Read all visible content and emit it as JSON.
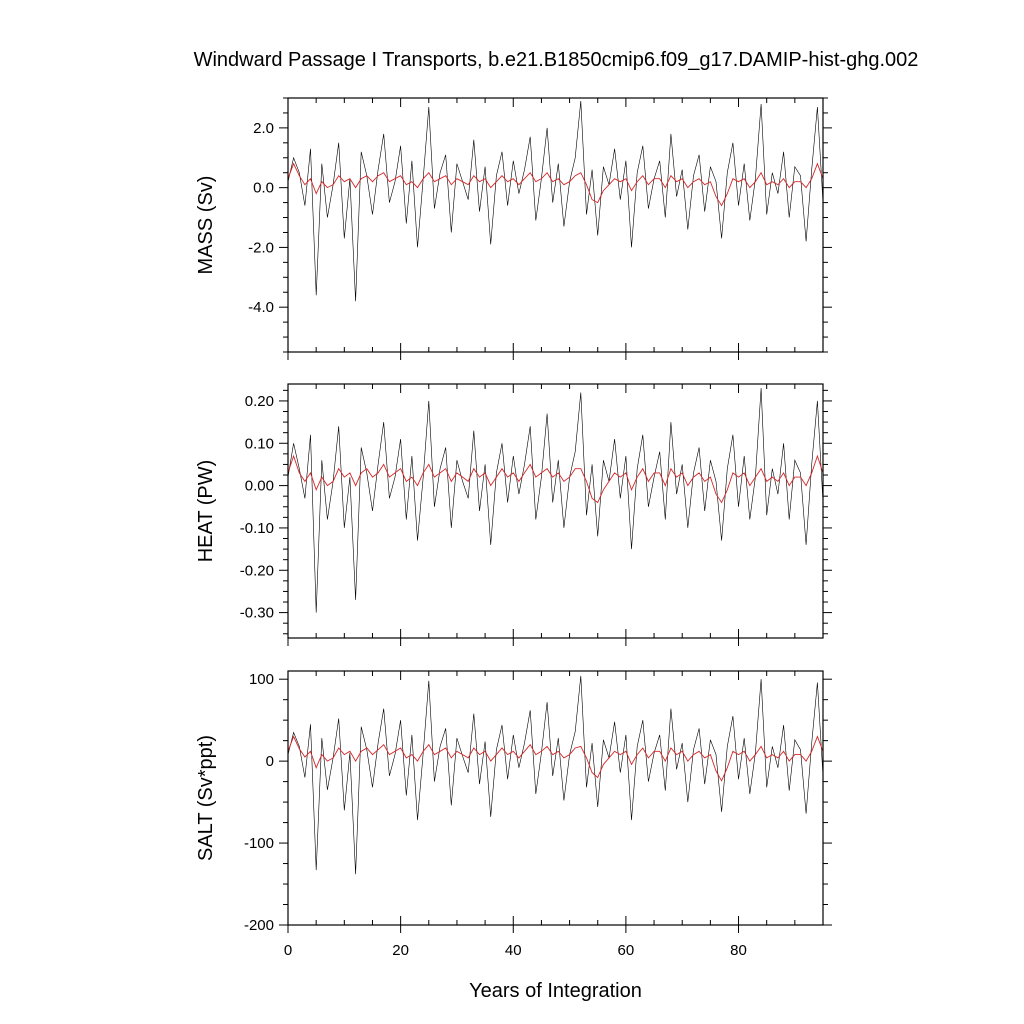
{
  "figure_title": "Windward Passage I Transports, b.e21.B1850cmip6.f09_g17.DAMIP-hist-ghg.002",
  "colors": {
    "raw_series": "#000000",
    "smoothed_series": "#d62728"
  },
  "chart_data": [
    {
      "type": "line",
      "title": "Windward Passage I Transports, b.e21.B1850cmip6.f09_g17.DAMIP-hist-ghg.002",
      "xlabel": "",
      "ylabel": "MASS (Sv)",
      "xlim": [
        0,
        95
      ],
      "ylim": [
        -5.5,
        3.0
      ],
      "x_ticks": [
        0,
        20,
        40,
        60,
        80
      ],
      "y_ticks": [
        2.0,
        0.0,
        -2.0,
        -4.0
      ],
      "y_tick_labels": [
        "2.0",
        "0.0",
        "-2.0",
        "-4.0"
      ],
      "series": [
        {
          "kind": "raw-monthly",
          "x_start": 0,
          "x_step": 1,
          "values": [
            0.2,
            1.0,
            0.5,
            -0.6,
            1.3,
            -3.6,
            0.8,
            -1.0,
            0.1,
            1.5,
            -1.7,
            0.3,
            -3.8,
            1.2,
            0.4,
            -0.9,
            0.6,
            1.8,
            -0.5,
            0.2,
            1.4,
            -1.2,
            0.9,
            -2.0,
            0.3,
            2.7,
            -0.7,
            0.5,
            1.1,
            -1.5,
            0.8,
            0.2,
            -0.4,
            1.6,
            -0.8,
            0.7,
            -1.9,
            0.4,
            1.2,
            -0.6,
            0.9,
            -0.2,
            0.6,
            1.7,
            -1.1,
            0.3,
            2.0,
            -0.5,
            0.8,
            -1.3,
            0.2,
            1.0,
            2.9,
            -0.9,
            0.6,
            -1.6,
            0.7,
            0.1,
            1.3,
            -0.4,
            0.9,
            -2.0,
            0.5,
            1.4,
            -0.7,
            0.3,
            0.9,
            -1.0,
            1.8,
            -0.3,
            0.6,
            -1.4,
            0.4,
            1.1,
            -0.8,
            0.7,
            0.2,
            -1.7,
            0.5,
            1.5,
            -0.6,
            0.8,
            -1.1,
            0.3,
            2.8,
            -0.9,
            0.5,
            -0.2,
            1.2,
            -1.0,
            0.7,
            0.4,
            -1.8,
            0.6,
            2.7,
            -0.5
          ]
        },
        {
          "kind": "smoothed",
          "x_start": 0,
          "x_step": 1,
          "values": [
            0.3,
            0.8,
            0.4,
            0.1,
            0.3,
            -0.2,
            0.2,
            0.0,
            0.1,
            0.4,
            0.2,
            0.3,
            0.0,
            0.3,
            0.4,
            0.2,
            0.4,
            0.5,
            0.2,
            0.3,
            0.4,
            0.1,
            0.2,
            0.0,
            0.3,
            0.5,
            0.2,
            0.3,
            0.4,
            0.1,
            0.3,
            0.2,
            0.1,
            0.4,
            0.2,
            0.3,
            0.0,
            0.2,
            0.4,
            0.2,
            0.3,
            0.1,
            0.3,
            0.5,
            0.2,
            0.3,
            0.5,
            0.2,
            0.3,
            0.1,
            0.2,
            0.4,
            0.5,
            0.1,
            -0.4,
            -0.5,
            -0.1,
            0.1,
            0.3,
            0.2,
            0.3,
            -0.1,
            0.2,
            0.4,
            0.1,
            0.3,
            0.3,
            0.0,
            0.4,
            0.2,
            0.3,
            0.0,
            0.2,
            0.3,
            0.1,
            0.2,
            -0.3,
            -0.6,
            -0.2,
            0.3,
            0.2,
            0.3,
            0.0,
            0.2,
            0.5,
            0.1,
            0.2,
            0.1,
            0.3,
            0.0,
            0.2,
            0.2,
            0.0,
            0.3,
            0.8,
            0.3
          ]
        }
      ]
    },
    {
      "type": "line",
      "xlabel": "",
      "ylabel": "HEAT (PW)",
      "xlim": [
        0,
        95
      ],
      "ylim": [
        -0.36,
        0.24
      ],
      "x_ticks": [
        0,
        20,
        40,
        60,
        80
      ],
      "y_ticks": [
        0.2,
        0.1,
        0.0,
        -0.1,
        -0.2,
        -0.3
      ],
      "y_tick_labels": [
        "0.20",
        "0.10",
        "0.00",
        "-0.10",
        "-0.20",
        "-0.30"
      ],
      "series": [
        {
          "kind": "raw-monthly",
          "x_start": 0,
          "x_step": 1,
          "values": [
            0.02,
            0.1,
            0.04,
            -0.03,
            0.12,
            -0.3,
            0.06,
            -0.08,
            0.01,
            0.14,
            -0.1,
            0.02,
            -0.27,
            0.09,
            0.03,
            -0.06,
            0.05,
            0.15,
            -0.03,
            0.02,
            0.11,
            -0.08,
            0.07,
            -0.13,
            0.02,
            0.2,
            -0.05,
            0.04,
            0.09,
            -0.1,
            0.06,
            0.01,
            -0.03,
            0.13,
            -0.06,
            0.05,
            -0.14,
            0.03,
            0.1,
            -0.04,
            0.07,
            -0.02,
            0.05,
            0.14,
            -0.08,
            0.02,
            0.17,
            -0.04,
            0.06,
            -0.1,
            0.02,
            0.08,
            0.22,
            -0.07,
            0.05,
            -0.12,
            0.06,
            0.01,
            0.11,
            -0.03,
            0.07,
            -0.15,
            0.04,
            0.12,
            -0.05,
            0.02,
            0.08,
            -0.08,
            0.15,
            -0.02,
            0.05,
            -0.1,
            0.03,
            0.09,
            -0.06,
            0.06,
            0.01,
            -0.13,
            0.04,
            0.12,
            -0.05,
            0.07,
            -0.08,
            0.02,
            0.23,
            -0.07,
            0.04,
            -0.02,
            0.1,
            -0.08,
            0.06,
            0.03,
            -0.14,
            0.05,
            0.2,
            -0.04
          ]
        },
        {
          "kind": "smoothed",
          "x_start": 0,
          "x_step": 1,
          "values": [
            0.03,
            0.07,
            0.03,
            0.01,
            0.03,
            -0.01,
            0.02,
            0.0,
            0.01,
            0.04,
            0.02,
            0.03,
            0.0,
            0.03,
            0.04,
            0.02,
            0.03,
            0.05,
            0.02,
            0.03,
            0.04,
            0.01,
            0.02,
            0.0,
            0.03,
            0.05,
            0.02,
            0.03,
            0.04,
            0.01,
            0.03,
            0.02,
            0.01,
            0.04,
            0.02,
            0.03,
            0.0,
            0.02,
            0.04,
            0.02,
            0.03,
            0.01,
            0.03,
            0.05,
            0.02,
            0.03,
            0.04,
            0.02,
            0.03,
            0.01,
            0.02,
            0.04,
            0.04,
            0.01,
            -0.03,
            -0.04,
            -0.01,
            0.01,
            0.03,
            0.02,
            0.03,
            -0.01,
            0.02,
            0.04,
            0.01,
            0.03,
            0.03,
            0.0,
            0.04,
            0.02,
            0.03,
            0.0,
            0.02,
            0.03,
            0.01,
            0.02,
            -0.02,
            -0.04,
            -0.01,
            0.03,
            0.02,
            0.03,
            0.0,
            0.02,
            0.04,
            0.01,
            0.02,
            0.01,
            0.03,
            0.0,
            0.02,
            0.02,
            0.0,
            0.03,
            0.07,
            0.03
          ]
        }
      ]
    },
    {
      "type": "line",
      "xlabel": "Years of Integration",
      "ylabel": "SALT (Sv*ppt)",
      "xlim": [
        0,
        95
      ],
      "ylim": [
        -200,
        110
      ],
      "x_ticks": [
        0,
        20,
        40,
        60,
        80
      ],
      "x_tick_labels": [
        "0",
        "20",
        "40",
        "60",
        "80"
      ],
      "y_ticks": [
        100,
        0,
        -100,
        -200
      ],
      "y_tick_labels": [
        "100",
        "0",
        "-100",
        "-200"
      ],
      "series": [
        {
          "kind": "raw-monthly",
          "x_start": 0,
          "x_step": 1,
          "values": [
            8,
            35,
            18,
            -20,
            45,
            -133,
            28,
            -35,
            4,
            52,
            -60,
            10,
            -138,
            42,
            14,
            -32,
            22,
            64,
            -18,
            8,
            50,
            -42,
            32,
            -72,
            10,
            98,
            -25,
            18,
            40,
            -54,
            28,
            6,
            -14,
            58,
            -28,
            24,
            -68,
            14,
            44,
            -22,
            32,
            -8,
            22,
            62,
            -40,
            10,
            72,
            -18,
            28,
            -48,
            8,
            36,
            104,
            -32,
            22,
            -56,
            26,
            4,
            48,
            -14,
            32,
            -72,
            18,
            50,
            -25,
            10,
            32,
            -36,
            64,
            -10,
            22,
            -50,
            14,
            40,
            -28,
            26,
            8,
            -62,
            18,
            55,
            -22,
            28,
            -40,
            10,
            100,
            -32,
            18,
            -8,
            44,
            -36,
            26,
            14,
            -64,
            22,
            96,
            -18
          ]
        },
        {
          "kind": "smoothed",
          "x_start": 0,
          "x_step": 1,
          "values": [
            12,
            30,
            15,
            5,
            12,
            -8,
            8,
            0,
            4,
            16,
            8,
            12,
            0,
            12,
            16,
            8,
            14,
            20,
            8,
            12,
            16,
            4,
            8,
            0,
            12,
            20,
            8,
            12,
            16,
            4,
            12,
            8,
            4,
            16,
            8,
            12,
            0,
            8,
            16,
            8,
            12,
            4,
            12,
            20,
            8,
            12,
            18,
            8,
            12,
            4,
            8,
            16,
            18,
            4,
            -14,
            -20,
            -4,
            4,
            12,
            8,
            12,
            -4,
            8,
            16,
            4,
            12,
            12,
            0,
            16,
            8,
            12,
            0,
            8,
            12,
            4,
            8,
            -12,
            -24,
            -8,
            12,
            8,
            12,
            0,
            8,
            18,
            4,
            8,
            4,
            12,
            0,
            8,
            8,
            0,
            12,
            30,
            12
          ]
        }
      ]
    }
  ]
}
